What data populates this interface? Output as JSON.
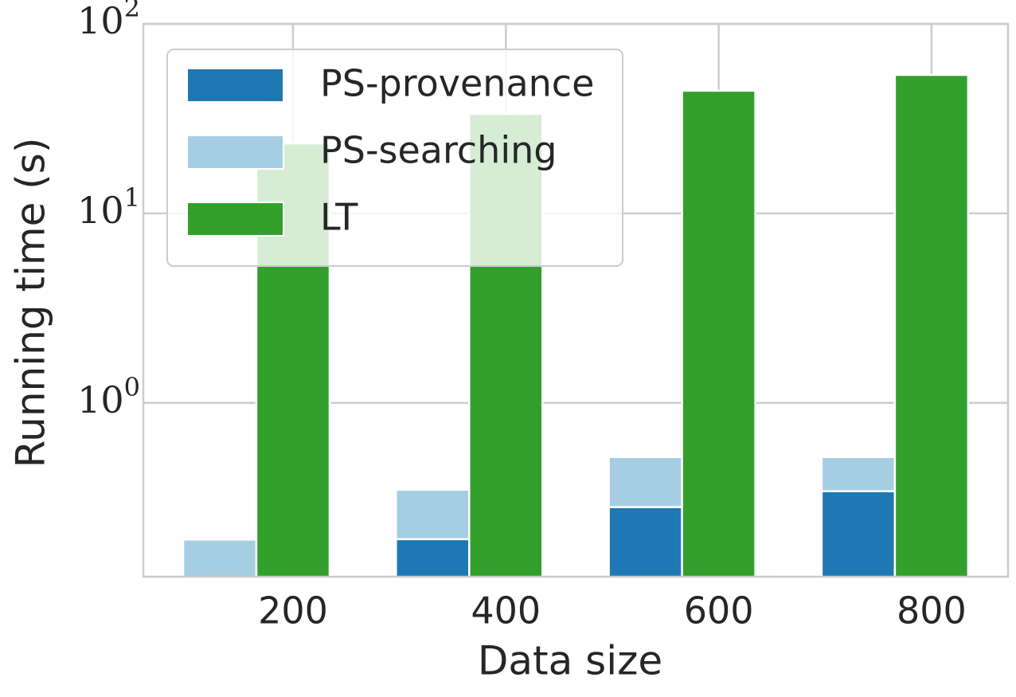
{
  "chart_data": {
    "type": "bar",
    "categories": [
      "200",
      "400",
      "600",
      "800"
    ],
    "x_label": "Data size",
    "y_label": "Running time (s)",
    "series": [
      {
        "name": "PS-provenance",
        "color": "#1f78b4",
        "values": [
          0.1,
          0.191,
          0.282,
          0.342
        ],
        "stack": "PS"
      },
      {
        "name": "PS-searching",
        "color": "#a6cee3",
        "values": [
          0.09,
          0.157,
          0.236,
          0.176
        ],
        "stack": "PS"
      },
      {
        "name": "LT",
        "color": "#33a02c",
        "values": [
          23.4,
          33.5,
          44.4,
          53.8
        ],
        "stack": "LT"
      }
    ],
    "log_scale": true,
    "ylim": [
      0.121,
      100
    ],
    "yticks": [
      {
        "value": 1,
        "label": "10^0"
      },
      {
        "value": 10,
        "label": "10^1"
      },
      {
        "value": 100,
        "label": "10^2"
      }
    ],
    "grid": true,
    "legend": "upper left"
  }
}
